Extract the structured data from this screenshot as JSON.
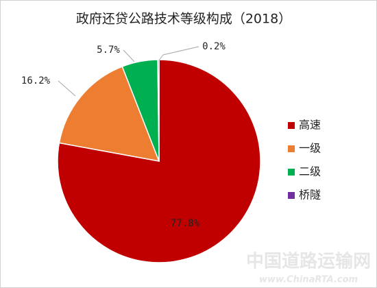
{
  "chart_data": {
    "type": "pie",
    "title": "政府还贷公路技术等级构成（2018）",
    "categories": [
      "高速",
      "一级",
      "二级",
      "桥隧"
    ],
    "values": [
      77.8,
      16.2,
      5.7,
      0.2
    ],
    "value_labels": [
      "77.8%",
      "16.2%",
      "5.7%",
      "0.2%"
    ],
    "colors": [
      "#c00000",
      "#ed7d31",
      "#00b050",
      "#7030a0"
    ],
    "legend": "right"
  },
  "watermark": {
    "name": "中国道路运输网",
    "url": "www.ChinaRTA.com"
  }
}
